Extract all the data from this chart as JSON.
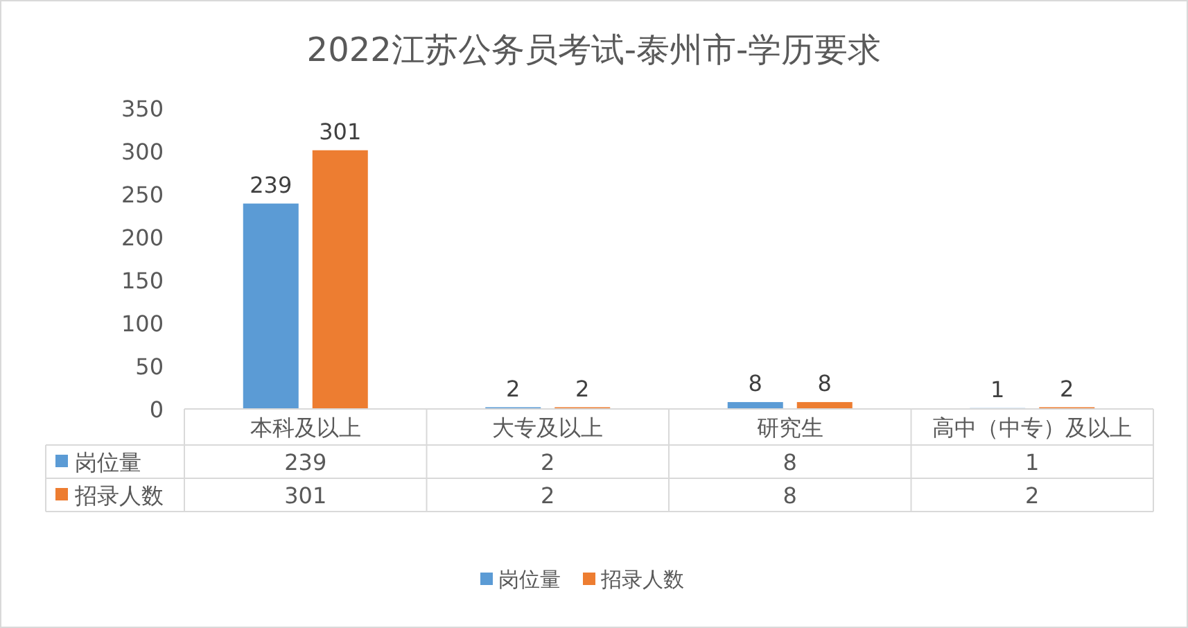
{
  "chart_data": {
    "type": "bar",
    "title": "2022江苏公务员考试-泰州市-学历要求",
    "categories": [
      "本科及以上",
      "大专及以上",
      "研究生",
      "高中（中专）及以上"
    ],
    "series": [
      {
        "name": "岗位量",
        "color": "#5b9bd5",
        "values": [
          239,
          2,
          8,
          1
        ]
      },
      {
        "name": "招录人数",
        "color": "#ed7d31",
        "values": [
          301,
          2,
          8,
          2
        ]
      }
    ],
    "annotations": [
      {
        "text": "239",
        "x": "本科及以上",
        "y": 239
      },
      {
        "text": "301",
        "x": "本科及以上",
        "y": 301
      },
      {
        "text": "2",
        "x": "大专及以上",
        "y": 2
      },
      {
        "text": "2",
        "x": "大专及以上",
        "y": 2
      },
      {
        "text": "8",
        "x": "研究生",
        "y": 8
      },
      {
        "text": "8",
        "x": "研究生",
        "y": 8
      },
      {
        "text": "1",
        "x": "高中（中专）及以上",
        "y": 1
      },
      {
        "text": "2",
        "x": "高中（中专）及以上",
        "y": 2
      }
    ],
    "ylim": [
      0,
      350
    ],
    "yticks": [
      0,
      50,
      100,
      150,
      200,
      250,
      300,
      350
    ],
    "data_labels": true,
    "legend": "bottom",
    "grid": false
  }
}
